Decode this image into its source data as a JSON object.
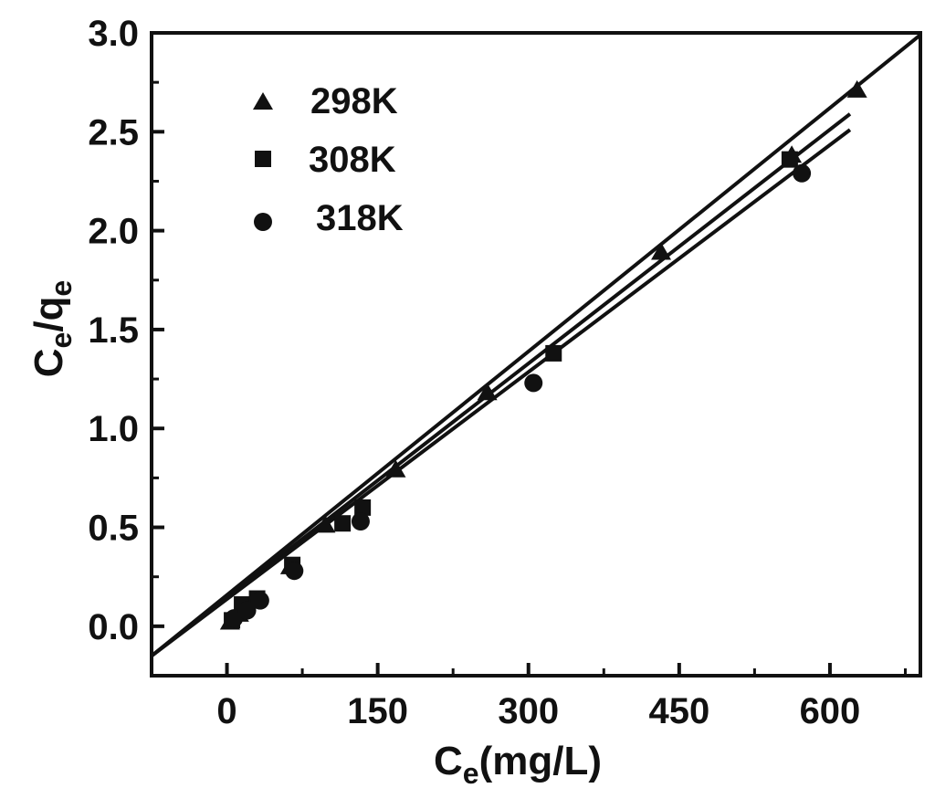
{
  "chart_data": {
    "type": "scatter",
    "title": "",
    "xlabel": {
      "main": "C",
      "sub": "e",
      "rest": "(mg/L)"
    },
    "ylabel": {
      "main": "C",
      "sub": "e",
      "sep": "/q",
      "sub2": "e"
    },
    "xlim": [
      -75,
      690
    ],
    "ylim": [
      -0.25,
      3.0
    ],
    "xticks": [
      0,
      150,
      300,
      450,
      600
    ],
    "xtick_labels": [
      "0",
      "150",
      "300",
      "450",
      "600"
    ],
    "yticks": [
      0.0,
      0.5,
      1.0,
      1.5,
      2.0,
      2.5,
      3.0
    ],
    "ytick_labels": [
      "0.0",
      "0.5",
      "1.0",
      "1.5",
      "2.0",
      "2.5",
      "3.0"
    ],
    "grid": false,
    "legend_position": "top-left",
    "series": [
      {
        "name": "298K",
        "marker": "triangle",
        "x": [
          3,
          12,
          27,
          63,
          98,
          168,
          259,
          432,
          562,
          627
        ],
        "y": [
          0.02,
          0.06,
          0.13,
          0.3,
          0.51,
          0.79,
          1.18,
          1.89,
          2.38,
          2.71
        ],
        "fit": {
          "x0": -75,
          "y0": -0.15,
          "x1": 690,
          "y1": 2.99
        }
      },
      {
        "name": "308K",
        "marker": "square",
        "x": [
          5,
          15,
          30,
          65,
          115,
          135,
          325,
          560
        ],
        "y": [
          0.03,
          0.11,
          0.14,
          0.31,
          0.52,
          0.6,
          1.38,
          2.36
        ],
        "fit": {
          "x0": -75,
          "y0": -0.15,
          "x1": 620,
          "y1": 2.59
        }
      },
      {
        "name": "318K",
        "marker": "circle",
        "x": [
          7,
          20,
          33,
          67,
          133,
          305,
          572
        ],
        "y": [
          0.04,
          0.08,
          0.13,
          0.28,
          0.53,
          1.23,
          2.29
        ],
        "fit": {
          "x0": -75,
          "y0": -0.15,
          "x1": 620,
          "y1": 2.51
        }
      }
    ]
  }
}
